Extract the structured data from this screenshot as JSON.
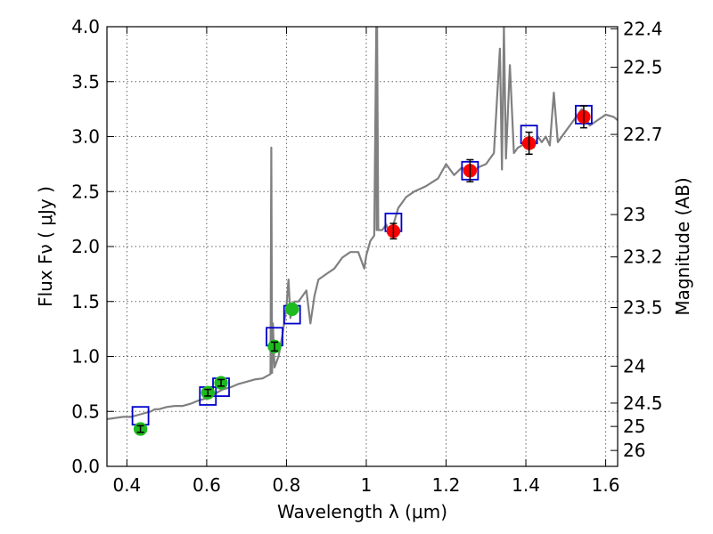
{
  "chart_data": {
    "type": "scatter",
    "xlabel": "Wavelength  λ (μm)",
    "ylabel": "Flux  Fν  ( μJy )",
    "ylabel_right": "Magnitude (AB)",
    "xlim": [
      0.35,
      1.63
    ],
    "ylim": [
      0.0,
      4.0
    ],
    "grid": true,
    "x_ticks": [
      0.4,
      0.6,
      0.8,
      1.0,
      1.2,
      1.4,
      1.6
    ],
    "x_tick_labels": [
      "0.4",
      "0.6",
      "0.8",
      "1",
      "1.2",
      "1.4",
      "1.6"
    ],
    "y_ticks": [
      0.0,
      0.5,
      1.0,
      1.5,
      2.0,
      2.5,
      3.0,
      3.5,
      4.0
    ],
    "y_tick_labels": [
      "0.0",
      "0.5",
      "1.0",
      "1.5",
      "2.0",
      "2.5",
      "3.0",
      "3.5",
      "4.0"
    ],
    "right_ticks": [
      {
        "label": "22.4",
        "mag": 22.4
      },
      {
        "label": "22.5",
        "mag": 22.5
      },
      {
        "label": "22.7",
        "mag": 22.7
      },
      {
        "label": "23",
        "mag": 23.0
      },
      {
        "label": "23.2",
        "mag": 23.2
      },
      {
        "label": "23.5",
        "mag": 23.5
      },
      {
        "label": "24",
        "mag": 24.0
      },
      {
        "label": "24.5",
        "mag": 24.5
      },
      {
        "label": "25",
        "mag": 25.0
      },
      {
        "label": "26",
        "mag": 26.0
      }
    ],
    "series": [
      {
        "kind": "line",
        "color": "#808080",
        "x": [
          0.35,
          0.37,
          0.39,
          0.41,
          0.43,
          0.45,
          0.46,
          0.47,
          0.48,
          0.5,
          0.52,
          0.54,
          0.56,
          0.58,
          0.6,
          0.62,
          0.64,
          0.66,
          0.68,
          0.7,
          0.72,
          0.74,
          0.75,
          0.76,
          0.762,
          0.764,
          0.766,
          0.77,
          0.78,
          0.79,
          0.8,
          0.805,
          0.81,
          0.815,
          0.82,
          0.83,
          0.84,
          0.85,
          0.86,
          0.87,
          0.88,
          0.9,
          0.92,
          0.94,
          0.96,
          0.98,
          0.995,
          1.0,
          1.01,
          1.02,
          1.025,
          1.026,
          1.027,
          1.03,
          1.04,
          1.05,
          1.06,
          1.08,
          1.1,
          1.12,
          1.15,
          1.18,
          1.2,
          1.22,
          1.24,
          1.26,
          1.28,
          1.3,
          1.32,
          1.335,
          1.34,
          1.345,
          1.35,
          1.36,
          1.37,
          1.38,
          1.39,
          1.4,
          1.41,
          1.42,
          1.43,
          1.44,
          1.45,
          1.46,
          1.47,
          1.48,
          1.5,
          1.52,
          1.54,
          1.56,
          1.58,
          1.6,
          1.62,
          1.63
        ],
        "y": [
          0.43,
          0.44,
          0.45,
          0.45,
          0.47,
          0.49,
          0.5,
          0.52,
          0.52,
          0.54,
          0.55,
          0.55,
          0.57,
          0.6,
          0.62,
          0.66,
          0.7,
          0.72,
          0.75,
          0.77,
          0.79,
          0.8,
          0.82,
          0.84,
          2.9,
          0.85,
          1.3,
          0.9,
          1.0,
          1.2,
          1.45,
          1.7,
          1.35,
          1.45,
          1.5,
          1.5,
          1.55,
          1.6,
          1.3,
          1.55,
          1.7,
          1.75,
          1.8,
          1.9,
          1.95,
          1.95,
          1.8,
          1.92,
          2.05,
          2.1,
          4.0,
          2.15,
          4.0,
          2.15,
          2.15,
          2.2,
          2.1,
          2.35,
          2.45,
          2.5,
          2.55,
          2.62,
          2.75,
          2.65,
          2.72,
          2.65,
          2.72,
          2.75,
          2.85,
          3.8,
          2.7,
          4.0,
          2.8,
          3.65,
          2.85,
          2.9,
          2.92,
          2.95,
          3.0,
          2.9,
          3.0,
          2.95,
          3.0,
          2.92,
          3.4,
          2.95,
          3.05,
          3.15,
          3.25,
          3.1,
          3.15,
          3.2,
          3.18,
          3.15
        ]
      },
      {
        "kind": "points",
        "marker": "circle",
        "color": "#1fba1f",
        "x": [
          0.434,
          0.603,
          0.636,
          0.77,
          0.814
        ],
        "y": [
          0.34,
          0.67,
          0.76,
          1.09,
          1.43
        ],
        "err": [
          0.03,
          0.03,
          0.03,
          0.04,
          0.0
        ]
      },
      {
        "kind": "points",
        "marker": "circle",
        "color": "#ff0000",
        "x": [
          1.068,
          1.26,
          1.408,
          1.545
        ],
        "y": [
          2.14,
          2.69,
          2.94,
          3.18
        ],
        "err": [
          0.07,
          0.1,
          0.1,
          0.1
        ]
      },
      {
        "kind": "points",
        "marker": "open-square",
        "color": "#0000cc",
        "x": [
          0.434,
          0.603,
          0.636,
          0.77,
          0.814,
          1.068,
          1.26,
          1.408,
          1.545
        ],
        "y": [
          0.46,
          0.64,
          0.72,
          1.18,
          1.38,
          2.22,
          2.69,
          3.02,
          3.2
        ]
      }
    ]
  }
}
